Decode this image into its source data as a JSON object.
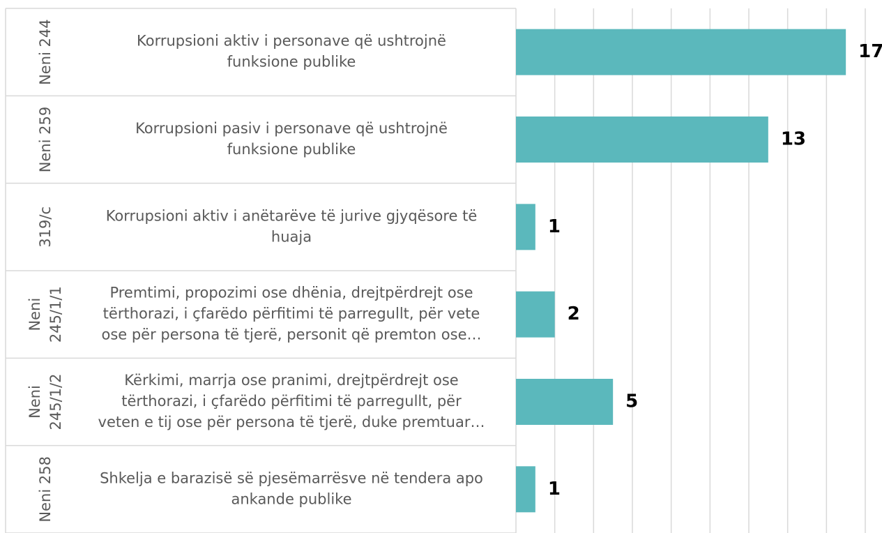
{
  "chart_data": {
    "type": "bar",
    "orientation": "horizontal",
    "groups": [
      [
        "Neni 244"
      ],
      [
        "Neni 259"
      ],
      [
        "319/c"
      ],
      [
        "Neni",
        "245/1/1"
      ],
      [
        "Neni",
        "245/1/2"
      ],
      [
        "Neni 258"
      ]
    ],
    "categories": [
      [
        "Korrupsioni aktiv i personave që ushtrojnë",
        "funksione publike"
      ],
      [
        "Korrupsioni pasiv i personave që ushtrojnë",
        "funksione publike"
      ],
      [
        "Korrupsioni aktiv i anëtarëve të jurive gjyqësore të",
        "huaja"
      ],
      [
        "Premtimi, propozimi ose dhënia, drejtpërdrejt ose",
        "tërthorazi, i çfarëdo përfitimi të parregullt, për vete",
        "ose për persona të tjerë, personit që premton ose…"
      ],
      [
        "Kërkimi, marrja ose pranimi, drejtpërdrejt ose",
        "tërthorazi, i çfarëdo përfitimi të parregullt, për",
        "veten e tij ose për persona të tjerë, duke premtuar…"
      ],
      [
        "Shkelja e barazisë së pjesëmarrësve në tendera apo",
        "ankande publike"
      ]
    ],
    "values": [
      17,
      13,
      1,
      2,
      5,
      1
    ],
    "color": "#5bb8bc",
    "xlim": [
      0,
      18
    ],
    "xticks": [
      0,
      2,
      4,
      6,
      8,
      10,
      12,
      14,
      16,
      18
    ],
    "grid": true
  }
}
